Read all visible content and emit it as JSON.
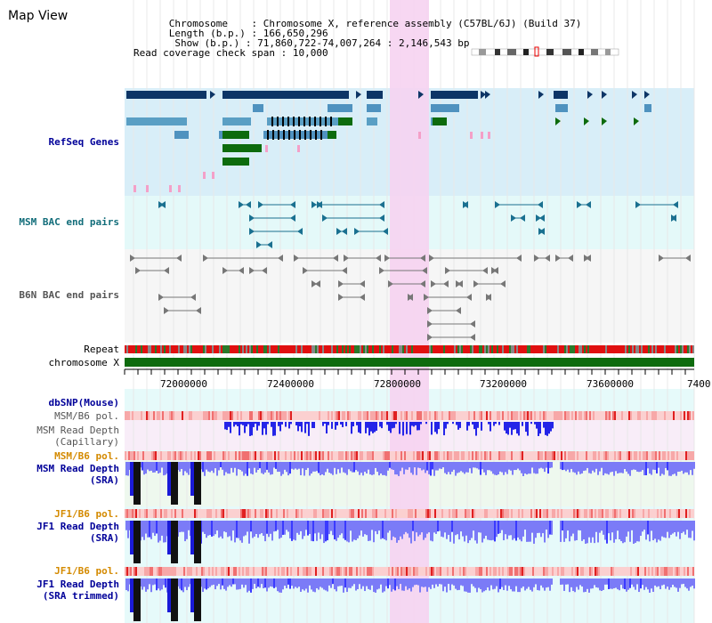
{
  "title": "Map View",
  "header": {
    "chromosome_key": "Chromosome",
    "chromosome_val": "Chromosome X, reference assembly (C57BL/6J) (Build 37)",
    "length_key": "Length (b.p.)",
    "length_val": "166,650,296",
    "show_key": "Show (b.p.)",
    "show_val": "71,860,722-74,007,264 : 2,146,543 bp",
    "coverage_key": "Read coverage check span",
    "coverage_val": "10,000"
  },
  "tracks": {
    "refseq": "RefSeq Genes",
    "msm_bac": "MSM BAC end pairs",
    "b6n_bac": "B6N BAC end pairs",
    "repeat": "Repeat",
    "chromosome": "chromosome X",
    "dbsnp": "dbSNP(Mouse)",
    "msm_pol": "MSM/B6 pol.",
    "msm_depth_cap_1": "MSM Read Depth",
    "msm_depth_cap_2": "(Capillary)",
    "msm_pol2": "MSM/B6 pol.",
    "msm_depth_sra_1": "MSM Read Depth",
    "msm_depth_sra_2": "(SRA)",
    "jf1_pol": "JF1/B6 pol.",
    "jf1_depth_sra_1": "JF1 Read Depth",
    "jf1_depth_sra_2": "(SRA)",
    "jf1_pol2": "JF1/B6 pol.",
    "jf1_depth_trim_1": "JF1 Read Depth",
    "jf1_depth_trim_2": "(SRA trimmed)"
  },
  "axis_ticks": [
    "72000000",
    "72400000",
    "72800000",
    "73200000",
    "73600000",
    "7400"
  ],
  "colors": {
    "gene_dark": "#0d3566",
    "gene_mid": "#4f92bf",
    "gene_light": "#5a9fc4",
    "gene_green": "#0d6b0d",
    "highlight": "#f6d3f1",
    "chrom": "#0e6b0e",
    "label_blue": "#000099",
    "label_teal": "#126d7a",
    "label_orange": "#d48a00"
  }
}
